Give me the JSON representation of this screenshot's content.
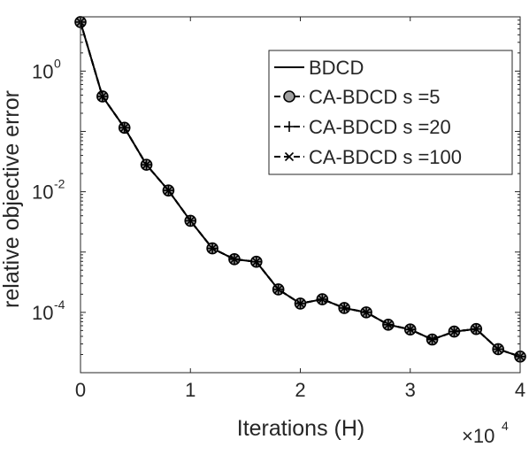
{
  "chart_data": {
    "type": "line",
    "xlabel": "Iterations (H)",
    "ylabel": "relative objective error",
    "x_multiplier_label": {
      "base": "×10",
      "exp": "4"
    },
    "xlim": [
      0,
      4
    ],
    "ylim_log10": [
      -5,
      0.9
    ],
    "y_scale": "log",
    "grid": false,
    "legend_position": "top-right",
    "x_ticks": [
      {
        "value": 0,
        "label": "0"
      },
      {
        "value": 1,
        "label": "1"
      },
      {
        "value": 2,
        "label": "2"
      },
      {
        "value": 3,
        "label": "3"
      },
      {
        "value": 4,
        "label": "4"
      }
    ],
    "y_ticks": [
      {
        "value": 0,
        "base": "10",
        "exp": "0"
      },
      {
        "value": -2,
        "base": "10",
        "exp": "-2"
      },
      {
        "value": -4,
        "base": "10",
        "exp": "-4"
      }
    ],
    "x": [
      0,
      0.2,
      0.4,
      0.6,
      0.8,
      1.0,
      1.2,
      1.4,
      1.6,
      1.8,
      2.0,
      2.2,
      2.4,
      2.6,
      2.8,
      3.0,
      3.2,
      3.4,
      3.6,
      3.8,
      4.0
    ],
    "series": [
      {
        "name": "BDCD",
        "marker": "none",
        "dash": "solid",
        "values": [
          6.5,
          0.38,
          0.115,
          0.028,
          0.0105,
          0.0033,
          0.00115,
          0.00076,
          0.00069,
          0.00024,
          0.00014,
          0.000165,
          0.000118,
          0.0001,
          6.25e-05,
          5.2e-05,
          3.55e-05,
          4.8e-05,
          5.3e-05,
          2.45e-05,
          1.85e-05
        ]
      },
      {
        "name": "CA-BDCD s =5",
        "marker": "circle",
        "dash": "dashed",
        "values": [
          6.5,
          0.38,
          0.115,
          0.028,
          0.0105,
          0.0033,
          0.00115,
          0.00076,
          0.00069,
          0.00024,
          0.00014,
          0.000165,
          0.000118,
          0.0001,
          6.25e-05,
          5.2e-05,
          3.55e-05,
          4.8e-05,
          5.3e-05,
          2.45e-05,
          1.85e-05
        ]
      },
      {
        "name": "CA-BDCD s =20",
        "marker": "plus",
        "dash": "dashed",
        "values": [
          6.5,
          0.38,
          0.115,
          0.028,
          0.0105,
          0.0033,
          0.00115,
          0.00076,
          0.00069,
          0.00024,
          0.00014,
          0.000165,
          0.000118,
          0.0001,
          6.25e-05,
          5.2e-05,
          3.55e-05,
          4.8e-05,
          5.3e-05,
          2.45e-05,
          1.85e-05
        ]
      },
      {
        "name": "CA-BDCD s =100",
        "marker": "cross",
        "dash": "dashed",
        "values": [
          6.5,
          0.38,
          0.115,
          0.028,
          0.0105,
          0.0033,
          0.00115,
          0.00076,
          0.00069,
          0.00024,
          0.00014,
          0.000165,
          0.000118,
          0.0001,
          6.25e-05,
          5.2e-05,
          3.55e-05,
          4.8e-05,
          5.3e-05,
          2.45e-05,
          1.85e-05
        ]
      }
    ],
    "colors": {
      "line": "#000000",
      "marker_fill": "#a0a0a0",
      "axes": "#262626",
      "background": "#ffffff"
    }
  }
}
